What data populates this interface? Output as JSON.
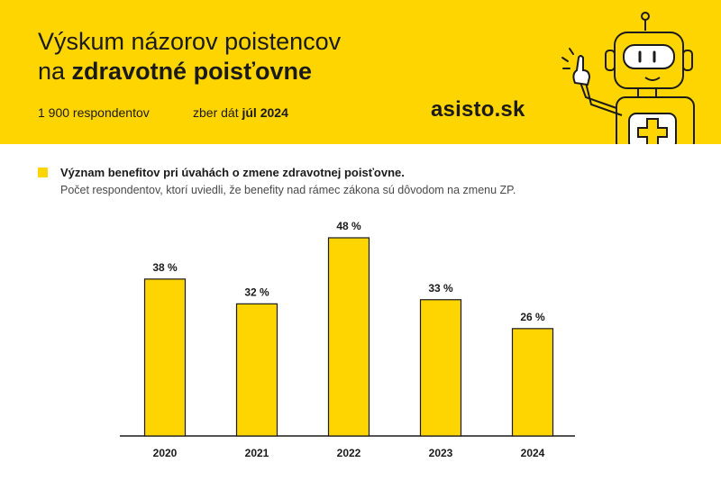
{
  "header": {
    "title_line1": "Výskum názorov poistencov",
    "title_line2_prefix": "na ",
    "title_line2_bold": "zdravotné poisťovne",
    "respondents": "1 900 respondentov",
    "collection_prefix": "zber dát ",
    "collection_bold": "júl 2024",
    "brand": "asisto.sk",
    "accent_color": "#FFD500",
    "mascot_icon": "robot-icon"
  },
  "subheader": {
    "title": "Význam benefitov pri úvahách o zmene zdravotnej poisťovne.",
    "description": "Počet respondentov, ktorí uviedli, že benefity nad rámec zákona sú dôvodom na zmenu ZP."
  },
  "chart_data": {
    "type": "bar",
    "categories": [
      "2020",
      "2021",
      "2022",
      "2023",
      "2024"
    ],
    "values": [
      38,
      32,
      48,
      33,
      26
    ],
    "value_labels": [
      "38 %",
      "32 %",
      "48 %",
      "33 %",
      "26 %"
    ],
    "ylim": [
      0,
      55
    ],
    "grid": false,
    "bar_color": "#FFD500"
  }
}
